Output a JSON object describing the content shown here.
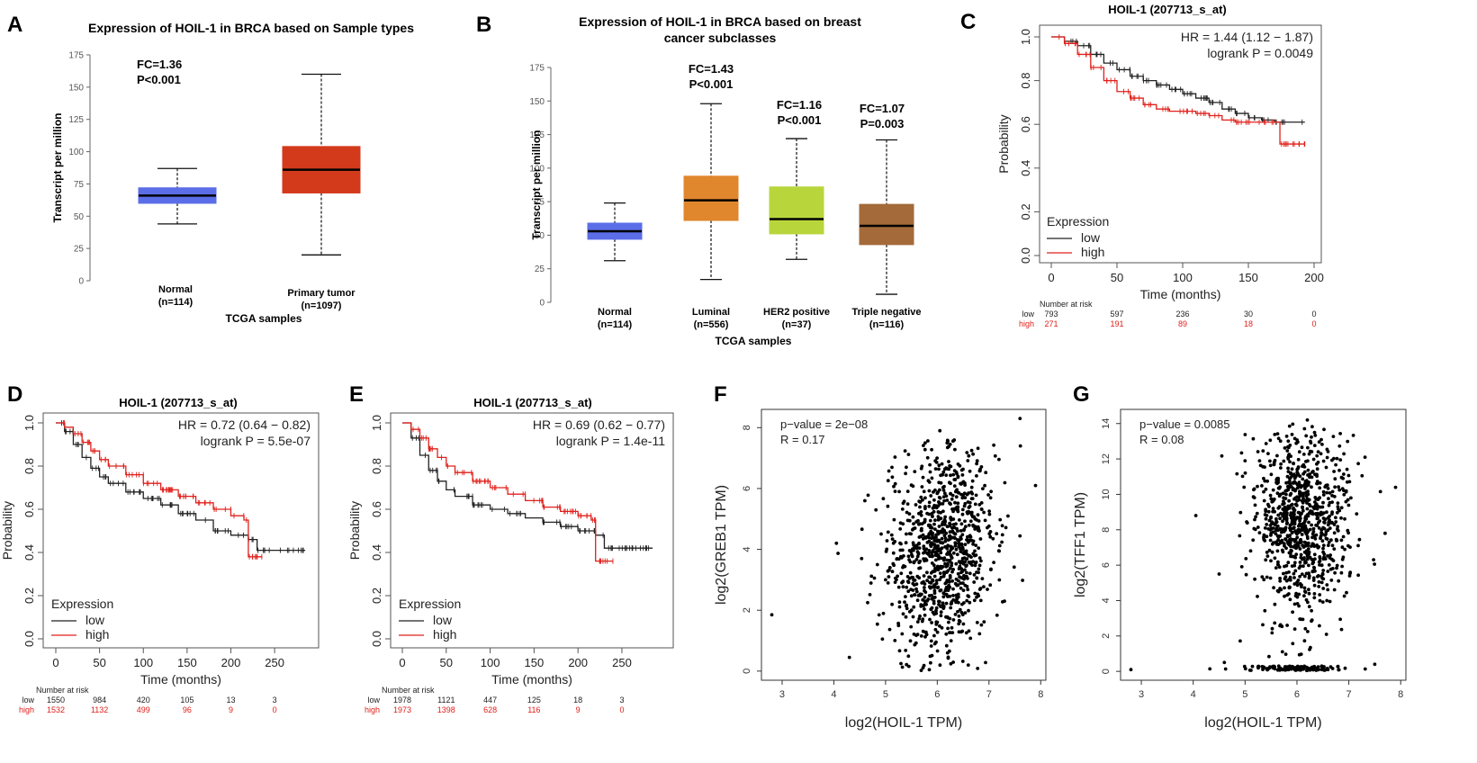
{
  "panels": {
    "A": {
      "letter": "A",
      "fc": "FC=1.36",
      "p": "P<0.001"
    },
    "B": {
      "letter": "B",
      "fc": [
        "FC=1.43",
        "FC=1.16",
        "FC=1.07"
      ],
      "p": [
        "P<0.001",
        "P<0.001",
        "P=0.003"
      ]
    },
    "C": {
      "letter": "C",
      "hr": "HR = 1.44 (1.12 − 1.87)",
      "logrank": "logrank P = 0.0049"
    },
    "D": {
      "letter": "D",
      "hr": "HR = 0.72 (0.64 − 0.82)",
      "logrank": "logrank P = 5.5e-07"
    },
    "E": {
      "letter": "E",
      "hr": "HR = 0.69 (0.62 − 0.77)",
      "logrank": "logrank P = 1.4e-11"
    },
    "F": {
      "letter": "F",
      "pvalue": "p−value = 2e−08",
      "r": "R = 0.17"
    },
    "G": {
      "letter": "G",
      "pvalue": "p−value = 0.0085",
      "r": "R = 0.08"
    }
  },
  "colors": {
    "normal": "#5b6ee8",
    "primary_tumor": "#d33a1c",
    "luminal": "#e0862d",
    "her2": "#b8d63c",
    "triple_negative": "#a46a3a",
    "km_low": "#222222",
    "km_high": "#e0201b"
  },
  "chart_data": [
    {
      "id": "A",
      "type": "box",
      "title": "Expression of HOIL-1 in BRCA based on Sample types",
      "xlabel": "TCGA samples",
      "ylabel": "Transcript per million",
      "ylim": [
        0,
        175
      ],
      "yticks": [
        "0",
        "25",
        "50",
        "75",
        "100",
        "125",
        "150",
        "175"
      ],
      "categories": [
        {
          "name": "Normal",
          "n": "(n=114)"
        },
        {
          "name": "Primary tumor",
          "n": "(n=1097)"
        }
      ],
      "boxes": [
        {
          "min": 44,
          "q1": 60,
          "median": 66,
          "q3": 72,
          "max": 87
        },
        {
          "min": 20,
          "q1": 68,
          "median": 86,
          "q3": 104,
          "max": 160
        }
      ]
    },
    {
      "id": "B",
      "type": "box",
      "title": [
        "Expression of HOIL-1 in BRCA based on breast",
        "cancer subclasses"
      ],
      "xlabel": "TCGA samples",
      "ylabel": "Transcript per million",
      "ylim": [
        0,
        175
      ],
      "yticks": [
        "0",
        "25",
        "50",
        "75",
        "100",
        "125",
        "150",
        "175"
      ],
      "categories": [
        {
          "name": "Normal",
          "n": "(n=114)"
        },
        {
          "name": "Luminal",
          "n": "(n=556)"
        },
        {
          "name": "HER2 positive",
          "n": "(n=37)"
        },
        {
          "name": "Triple negative",
          "n": "(n=116)"
        }
      ],
      "boxes": [
        {
          "min": 31,
          "q1": 47,
          "median": 53,
          "q3": 59,
          "max": 74
        },
        {
          "min": 17,
          "q1": 61,
          "median": 76,
          "q3": 94,
          "max": 148
        },
        {
          "min": 32,
          "q1": 51,
          "median": 62,
          "q3": 86,
          "max": 122
        },
        {
          "min": 6,
          "q1": 43,
          "median": 57,
          "q3": 73,
          "max": 121
        }
      ]
    },
    {
      "id": "C",
      "type": "line",
      "title": "HOIL-1 (207713_s_at)",
      "xlabel": "Time (months)",
      "ylabel": "Probability",
      "xlim": [
        0,
        200
      ],
      "ylim": [
        0,
        1
      ],
      "xticks": [
        "0",
        "50",
        "100",
        "150",
        "200"
      ],
      "yticks": [
        "0.0",
        "0.2",
        "0.4",
        "0.6",
        "0.8",
        "1.0"
      ],
      "legend_title": "Expression",
      "legend": [
        "low",
        "high"
      ],
      "series": [
        {
          "name": "low",
          "x": [
            0,
            10,
            20,
            30,
            40,
            50,
            60,
            70,
            80,
            90,
            100,
            110,
            120,
            130,
            140,
            150,
            160,
            170,
            180,
            193
          ],
          "values": [
            1.0,
            0.98,
            0.96,
            0.92,
            0.88,
            0.85,
            0.82,
            0.8,
            0.78,
            0.76,
            0.74,
            0.72,
            0.7,
            0.67,
            0.65,
            0.63,
            0.62,
            0.61,
            0.61,
            0.61
          ]
        },
        {
          "name": "high",
          "x": [
            0,
            10,
            20,
            30,
            40,
            50,
            60,
            70,
            80,
            90,
            100,
            110,
            120,
            130,
            140,
            150,
            160,
            170,
            173,
            174,
            193
          ],
          "values": [
            1.0,
            0.97,
            0.92,
            0.86,
            0.8,
            0.75,
            0.72,
            0.69,
            0.67,
            0.66,
            0.66,
            0.65,
            0.64,
            0.62,
            0.61,
            0.61,
            0.61,
            0.61,
            0.61,
            0.51,
            0.51
          ]
        }
      ],
      "risk_label": "Number at risk",
      "risk": {
        "times": [
          "0",
          "50",
          "100",
          "150",
          "200"
        ],
        "rows": [
          {
            "name": "low",
            "counts": [
              "793",
              "597",
              "236",
              "30",
              "0"
            ]
          },
          {
            "name": "high",
            "counts": [
              "271",
              "191",
              "89",
              "18",
              "0"
            ]
          }
        ]
      }
    },
    {
      "id": "D",
      "type": "line",
      "title": "HOIL-1 (207713_s_at)",
      "xlabel": "Time (months)",
      "ylabel": "Probability",
      "xlim": [
        0,
        290
      ],
      "ylim": [
        0,
        1
      ],
      "xticks": [
        "0",
        "50",
        "100",
        "150",
        "200",
        "250"
      ],
      "yticks": [
        "0.0",
        "0.2",
        "0.4",
        "0.6",
        "0.8",
        "1.0"
      ],
      "legend_title": "Expression",
      "legend": [
        "low",
        "high"
      ],
      "series": [
        {
          "name": "low",
          "x": [
            0,
            10,
            20,
            30,
            40,
            50,
            60,
            80,
            100,
            120,
            140,
            160,
            180,
            200,
            220,
            225,
            230,
            260,
            285
          ],
          "values": [
            1.0,
            0.96,
            0.9,
            0.84,
            0.79,
            0.75,
            0.72,
            0.68,
            0.65,
            0.62,
            0.58,
            0.55,
            0.5,
            0.48,
            0.46,
            0.46,
            0.41,
            0.41,
            0.41
          ]
        },
        {
          "name": "high",
          "x": [
            0,
            10,
            20,
            30,
            40,
            50,
            60,
            80,
            100,
            120,
            140,
            160,
            180,
            200,
            215,
            220,
            235,
            236
          ],
          "values": [
            1.0,
            0.98,
            0.95,
            0.91,
            0.87,
            0.83,
            0.8,
            0.76,
            0.72,
            0.69,
            0.66,
            0.63,
            0.6,
            0.57,
            0.55,
            0.38,
            0.38,
            0.38
          ]
        }
      ],
      "risk_label": "Number at risk",
      "risk": {
        "times": [
          "0",
          "50",
          "100",
          "150",
          "200",
          "250"
        ],
        "rows": [
          {
            "name": "low",
            "counts": [
              "1550",
              "984",
              "420",
              "105",
              "13",
              "3"
            ]
          },
          {
            "name": "high",
            "counts": [
              "1532",
              "1132",
              "499",
              "96",
              "9",
              "0"
            ]
          }
        ]
      }
    },
    {
      "id": "E",
      "type": "line",
      "title": "HOIL-1 (207713_s_at)",
      "xlabel": "Time (months)",
      "ylabel": "Probability",
      "xlim": [
        0,
        290
      ],
      "ylim": [
        0,
        1
      ],
      "xticks": [
        "0",
        "50",
        "100",
        "150",
        "200",
        "250"
      ],
      "yticks": [
        "0.0",
        "0.2",
        "0.4",
        "0.6",
        "0.8",
        "1.0"
      ],
      "legend_title": "Expression",
      "legend": [
        "low",
        "high"
      ],
      "series": [
        {
          "name": "low",
          "x": [
            0,
            10,
            20,
            30,
            40,
            50,
            60,
            80,
            100,
            120,
            140,
            160,
            180,
            200,
            220,
            230,
            240,
            285
          ],
          "values": [
            1.0,
            0.93,
            0.85,
            0.78,
            0.73,
            0.69,
            0.66,
            0.62,
            0.6,
            0.58,
            0.56,
            0.54,
            0.52,
            0.5,
            0.48,
            0.42,
            0.42,
            0.42
          ]
        },
        {
          "name": "high",
          "x": [
            0,
            10,
            20,
            30,
            40,
            50,
            60,
            80,
            100,
            120,
            140,
            160,
            180,
            200,
            215,
            220,
            240
          ],
          "values": [
            1.0,
            0.97,
            0.93,
            0.88,
            0.84,
            0.8,
            0.77,
            0.73,
            0.7,
            0.67,
            0.64,
            0.61,
            0.59,
            0.57,
            0.55,
            0.36,
            0.36
          ]
        }
      ],
      "risk_label": "Number at risk",
      "risk": {
        "times": [
          "0",
          "50",
          "100",
          "150",
          "200",
          "250"
        ],
        "rows": [
          {
            "name": "low",
            "counts": [
              "1978",
              "1121",
              "447",
              "125",
              "18",
              "3"
            ]
          },
          {
            "name": "high",
            "counts": [
              "1973",
              "1398",
              "628",
              "116",
              "9",
              "0"
            ]
          }
        ]
      }
    },
    {
      "id": "F",
      "type": "scatter",
      "xlabel": "log2(HOIL-1 TPM)",
      "ylabel": "log2(GREB1 TPM)",
      "xlim": [
        2.6,
        8.1
      ],
      "ylim": [
        -0.3,
        8.6
      ],
      "xticks": [
        "3",
        "4",
        "5",
        "6",
        "7",
        "8"
      ],
      "yticks": [
        "0",
        "2",
        "4",
        "6",
        "8"
      ],
      "points_summary": "~1000 points centered near x=6.1, y=4; range x 2.8-7.9, y 0-8.3",
      "points": [
        [
          2.8,
          1.85
        ],
        [
          4.05,
          4.2
        ],
        [
          4.3,
          0.45
        ],
        [
          4.6,
          5.6
        ],
        [
          7.6,
          8.3
        ],
        [
          7.9,
          6.1
        ],
        [
          6.05,
          7.9
        ],
        [
          5.0,
          3.0
        ],
        [
          5.4,
          6.7
        ],
        [
          6.6,
          0.2
        ],
        [
          7.3,
          2.3
        ]
      ]
    },
    {
      "id": "G",
      "type": "scatter",
      "xlabel": "log2(HOIL-1 TPM)",
      "ylabel": "log2(TFF1 TPM)",
      "xlim": [
        2.6,
        8.1
      ],
      "ylim": [
        -0.5,
        14.8
      ],
      "xticks": [
        "3",
        "4",
        "5",
        "6",
        "7",
        "8"
      ],
      "yticks": [
        "0",
        "2",
        "4",
        "6",
        "8",
        "10",
        "12",
        "14"
      ],
      "points_summary": "~1000 points centered near x=6.1, y=8; dense band at y=0",
      "points": [
        [
          2.8,
          0.1
        ],
        [
          4.05,
          8.8
        ],
        [
          4.5,
          5.5
        ],
        [
          5.0,
          11.9
        ],
        [
          6.2,
          14.2
        ],
        [
          7.9,
          10.4
        ],
        [
          7.7,
          7.8
        ],
        [
          4.6,
          0.5
        ],
        [
          7.5,
          0.4
        ]
      ]
    }
  ]
}
